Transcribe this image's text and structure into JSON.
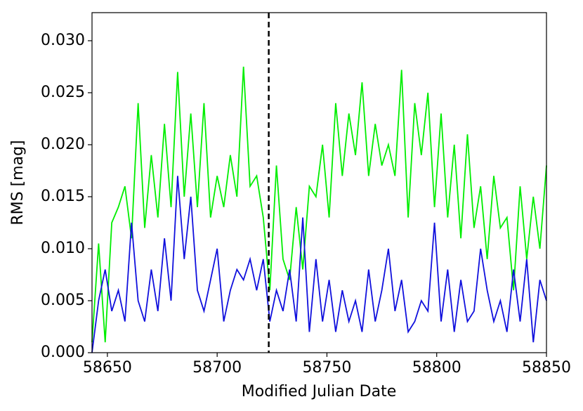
{
  "chart_data": {
    "type": "line",
    "xlabel": "Modified Julian Date",
    "ylabel": "RMS [mag]",
    "x": [
      58643,
      58646,
      58649,
      58652,
      58655,
      58658,
      58661,
      58664,
      58667,
      58670,
      58673,
      58676,
      58679,
      58682,
      58685,
      58688,
      58691,
      58694,
      58697,
      58700,
      58703,
      58706,
      58709,
      58712,
      58715,
      58718,
      58721,
      58724,
      58727,
      58730,
      58733,
      58736,
      58739,
      58742,
      58745,
      58748,
      58751,
      58754,
      58757,
      58760,
      58763,
      58766,
      58769,
      58772,
      58775,
      58778,
      58781,
      58784,
      58787,
      58790,
      58793,
      58796,
      58799,
      58802,
      58805,
      58808,
      58811,
      58814,
      58817,
      58820,
      58823,
      58826,
      58829,
      58832,
      58835,
      58838,
      58841,
      58844,
      58847,
      58850
    ],
    "series": [
      {
        "color": "#00ee00",
        "values": [
          0.001,
          0.0105,
          0.001,
          0.0125,
          0.014,
          0.016,
          0.011,
          0.024,
          0.012,
          0.019,
          0.013,
          0.022,
          0.014,
          0.027,
          0.015,
          0.023,
          0.014,
          0.024,
          0.013,
          0.017,
          0.014,
          0.019,
          0.015,
          0.0275,
          0.016,
          0.017,
          0.013,
          0.006,
          0.018,
          0.009,
          0.007,
          0.014,
          0.008,
          0.016,
          0.015,
          0.02,
          0.013,
          0.024,
          0.017,
          0.023,
          0.019,
          0.026,
          0.017,
          0.022,
          0.018,
          0.02,
          0.017,
          0.0272,
          0.013,
          0.024,
          0.019,
          0.025,
          0.014,
          0.023,
          0.013,
          0.02,
          0.011,
          0.021,
          0.012,
          0.016,
          0.009,
          0.017,
          0.012,
          0.013,
          0.006,
          0.016,
          0.009,
          0.015,
          0.01,
          0.018
        ]
      },
      {
        "color": "#1010dd",
        "values": [
          0.0,
          0.005,
          0.008,
          0.004,
          0.006,
          0.003,
          0.0125,
          0.005,
          0.003,
          0.008,
          0.004,
          0.011,
          0.005,
          0.017,
          0.009,
          0.015,
          0.006,
          0.004,
          0.007,
          0.01,
          0.003,
          0.006,
          0.008,
          0.007,
          0.009,
          0.006,
          0.009,
          0.003,
          0.006,
          0.004,
          0.008,
          0.003,
          0.013,
          0.002,
          0.009,
          0.003,
          0.007,
          0.002,
          0.006,
          0.003,
          0.005,
          0.002,
          0.008,
          0.003,
          0.006,
          0.01,
          0.004,
          0.007,
          0.002,
          0.003,
          0.005,
          0.004,
          0.0125,
          0.003,
          0.008,
          0.002,
          0.007,
          0.003,
          0.004,
          0.01,
          0.006,
          0.003,
          0.005,
          0.002,
          0.008,
          0.003,
          0.009,
          0.001,
          0.007,
          0.005
        ]
      }
    ],
    "vline": 58723.5,
    "xlim": [
      58643,
      58850
    ],
    "xticks": [
      58650,
      58700,
      58750,
      58800,
      58850
    ],
    "ylim": [
      0,
      0.0327
    ],
    "yticks": [
      {
        "value": 0,
        "label": "0.000"
      },
      {
        "value": 0.005,
        "label": "0.005"
      },
      {
        "value": 0.01,
        "label": "0.010"
      },
      {
        "value": 0.015,
        "label": "0.015"
      },
      {
        "value": 0.02,
        "label": "0.020"
      },
      {
        "value": 0.025,
        "label": "0.025"
      },
      {
        "value": 0.03,
        "label": "0.030"
      }
    ]
  }
}
